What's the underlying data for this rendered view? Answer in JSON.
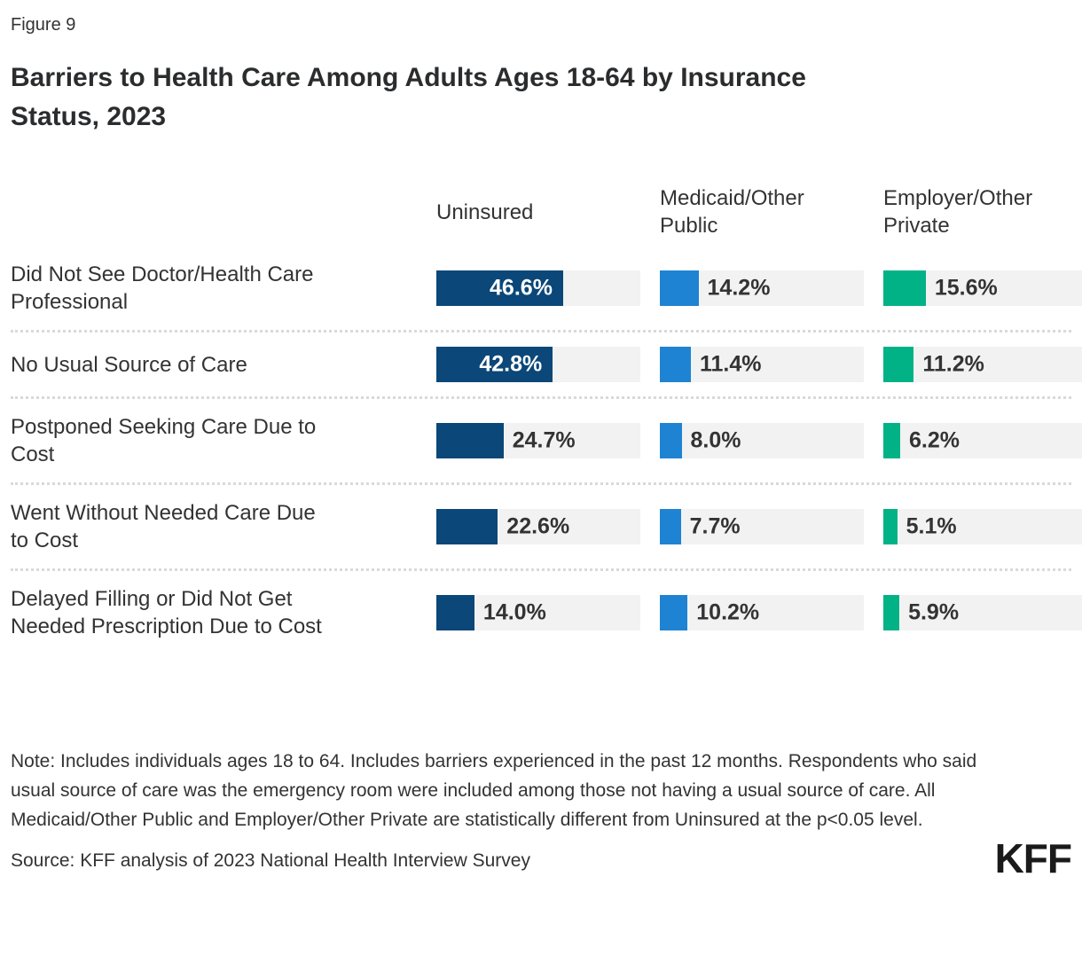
{
  "figure_label": "Figure 9",
  "title": "Barriers to Health Care Among Adults Ages 18-64 by Insurance Status, 2023",
  "title_lines": [
    "Barriers to Health Care Among Adults Ages 18-64 by Insurance",
    "Status, 2023"
  ],
  "chart_data": {
    "type": "bar",
    "orientation": "horizontal",
    "unit": "percent",
    "xlim": [
      0,
      75
    ],
    "grid": false,
    "legend_position": "column-headers",
    "categories": [
      "Did Not See Doctor/Health Care Professional",
      "No Usual Source of Care",
      "Postponed Seeking Care Due to Cost",
      "Went Without Needed Care Due to Cost",
      "Delayed Filling or Did Not Get Needed Prescription Due to Cost"
    ],
    "series": [
      {
        "name": "Uninsured",
        "color": "#0B4778",
        "values": [
          46.6,
          42.8,
          24.7,
          22.6,
          14.0
        ]
      },
      {
        "name": "Medicaid/Other Public",
        "color": "#1E83D3",
        "values": [
          14.2,
          11.4,
          8.0,
          7.7,
          10.2
        ]
      },
      {
        "name": "Employer/Other Private",
        "color": "#00B286",
        "values": [
          15.6,
          11.2,
          6.2,
          5.1,
          5.9
        ]
      }
    ],
    "value_suffix": "%",
    "track_color": "#F2F2F2",
    "divider_color": "#D9D9D9",
    "inside_label_threshold": 40
  },
  "note": "Note: Includes individuals ages 18 to 64. Includes barriers experienced in the past 12 months. Respondents who said usual source of care was the emergency room were included among those not having a usual source of care. All Medicaid/Other Public and Employer/Other Private are statistically different from Uninsured at the p<0.05 level.",
  "source": "Source: KFF analysis of 2023 National Health Interview Survey",
  "logo_text": "KFF"
}
